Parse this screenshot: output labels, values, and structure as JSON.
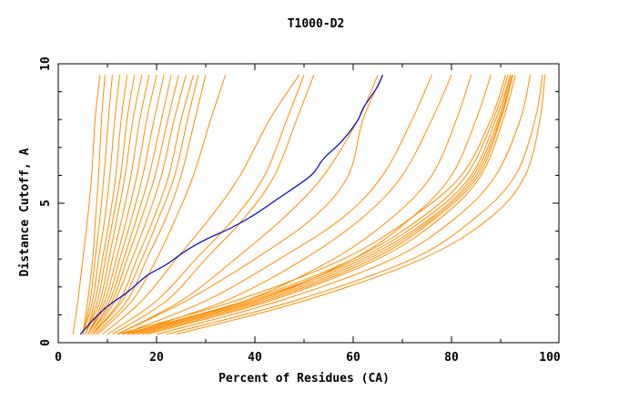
{
  "chart_data": {
    "type": "line",
    "title": "T1000-D2",
    "xlabel": "Percent of Residues (CA)",
    "ylabel": "Distance Cutoff, A",
    "xlim": [
      0,
      100
    ],
    "ylim": [
      0,
      10
    ],
    "x_ticks": [
      "0",
      "20",
      "40",
      "60",
      "80",
      "100"
    ],
    "y_ticks": [
      "0",
      "5",
      "10"
    ],
    "grid": false,
    "colors": {
      "highlight": "#0000cc",
      "others": "#ff8c00",
      "axes": "#000000"
    },
    "highlighted_series": {
      "x": [
        4.5,
        7,
        10,
        14,
        18,
        22,
        26,
        30,
        35,
        40,
        45,
        50,
        52,
        54,
        57,
        59,
        61,
        62,
        63.5,
        65,
        66
      ],
      "y": [
        0.3,
        0.8,
        1.3,
        1.8,
        2.4,
        2.8,
        3.3,
        3.7,
        4.1,
        4.6,
        5.2,
        5.8,
        6.1,
        6.6,
        7.1,
        7.5,
        8.0,
        8.4,
        8.8,
        9.2,
        9.6
      ]
    },
    "other_series": [
      {
        "x": [
          5,
          6,
          7,
          7.6,
          8.2,
          8.8,
          9.5
        ],
        "y": [
          0.3,
          1.5,
          3.0,
          4.5,
          6.0,
          8.0,
          9.6
        ]
      },
      {
        "x": [
          5,
          6.5,
          7.5,
          8.5,
          9.3,
          10.2,
          11
        ],
        "y": [
          0.3,
          1.5,
          3.0,
          4.5,
          6.0,
          8.0,
          9.6
        ]
      },
      {
        "x": [
          5,
          7,
          8.2,
          9.5,
          10.5,
          11.5,
          12.5
        ],
        "y": [
          0.3,
          1.5,
          3.0,
          4.5,
          6.0,
          8.0,
          9.6
        ]
      },
      {
        "x": [
          5.5,
          7.5,
          9,
          10.5,
          11.7,
          12.8,
          14
        ],
        "y": [
          0.3,
          1.5,
          3.0,
          4.5,
          6.0,
          8.0,
          9.6
        ]
      },
      {
        "x": [
          5.5,
          8,
          9.6,
          11.2,
          12.7,
          14,
          15.5
        ],
        "y": [
          0.3,
          1.5,
          3.0,
          4.5,
          6.0,
          8.0,
          9.6
        ]
      },
      {
        "x": [
          5.5,
          8.5,
          10.3,
          12,
          13.6,
          15.2,
          17
        ],
        "y": [
          0.3,
          1.5,
          3.0,
          4.5,
          6.0,
          8.0,
          9.6
        ]
      },
      {
        "x": [
          6,
          9,
          11,
          13,
          14.8,
          16.6,
          18.5
        ],
        "y": [
          0.3,
          1.5,
          3.0,
          4.5,
          6.0,
          8.0,
          9.6
        ]
      },
      {
        "x": [
          6,
          9.5,
          11.8,
          14,
          16,
          18,
          20
        ],
        "y": [
          0.3,
          1.5,
          3.0,
          4.5,
          6.0,
          8.0,
          9.6
        ]
      },
      {
        "x": [
          6,
          10,
          12.5,
          15,
          17.2,
          19.5,
          21.5
        ],
        "y": [
          0.3,
          1.5,
          3.0,
          4.5,
          6.0,
          8.0,
          9.6
        ]
      },
      {
        "x": [
          6.5,
          10.5,
          13.3,
          16,
          18.5,
          21,
          23
        ],
        "y": [
          0.3,
          1.5,
          3.0,
          4.5,
          6.0,
          8.0,
          9.6
        ]
      },
      {
        "x": [
          6.5,
          11,
          14,
          17,
          19.7,
          22.3,
          24.5
        ],
        "y": [
          0.3,
          1.5,
          3.0,
          4.5,
          6.0,
          8.0,
          9.6
        ]
      },
      {
        "x": [
          7,
          11.5,
          15,
          18.2,
          21,
          23.6,
          26
        ],
        "y": [
          0.3,
          1.5,
          3.0,
          4.5,
          6.0,
          8.0,
          9.6
        ]
      },
      {
        "x": [
          7,
          12.5,
          16,
          19.5,
          22.5,
          25,
          27.5
        ],
        "y": [
          0.3,
          1.5,
          3.0,
          4.5,
          6.0,
          8.0,
          9.6
        ]
      },
      {
        "x": [
          7,
          13,
          17,
          20.5,
          23.7,
          26.3,
          28.5
        ],
        "y": [
          0.3,
          1.5,
          3.0,
          4.5,
          6.0,
          8.0,
          9.6
        ]
      },
      {
        "x": [
          7.5,
          14,
          18,
          22,
          25,
          27.8,
          30
        ],
        "y": [
          0.3,
          1.5,
          3.0,
          4.5,
          6.0,
          8.0,
          9.6
        ]
      },
      {
        "x": [
          8,
          15,
          20,
          24,
          27.5,
          31,
          34
        ],
        "y": [
          0.3,
          1.5,
          3.0,
          4.5,
          6.0,
          8.0,
          9.6
        ]
      },
      {
        "x": [
          3,
          4,
          5,
          6,
          6.8,
          7.5,
          8.5
        ],
        "y": [
          0.3,
          1.5,
          3.0,
          4.5,
          6.0,
          8.0,
          9.6
        ]
      },
      {
        "x": [
          9,
          17,
          24,
          31,
          37,
          43,
          49
        ],
        "y": [
          0.3,
          1.5,
          3.0,
          4.5,
          6.0,
          8.0,
          9.6
        ]
      },
      {
        "x": [
          10,
          20,
          28,
          36,
          42,
          46.5,
          50
        ],
        "y": [
          0.3,
          1.5,
          3.0,
          4.5,
          6.0,
          8.0,
          9.6
        ]
      },
      {
        "x": [
          11,
          22,
          30,
          38,
          44,
          48.5,
          52
        ],
        "y": [
          0.3,
          1.5,
          3.0,
          4.5,
          6.0,
          8.0,
          9.6
        ]
      },
      {
        "x": [
          12,
          25,
          36,
          46,
          54,
          61,
          65
        ],
        "y": [
          0.3,
          1.5,
          3.0,
          4.5,
          6.0,
          8.0,
          9.6
        ]
      },
      {
        "x": [
          12,
          26,
          40,
          52,
          59,
          62,
          66
        ],
        "y": [
          0.3,
          1.5,
          3.0,
          4.5,
          6.0,
          8.0,
          9.6
        ]
      },
      {
        "x": [
          13,
          30,
          45,
          58,
          66,
          72,
          76
        ],
        "y": [
          0.3,
          1.5,
          3.0,
          4.5,
          6.0,
          8.0,
          9.6
        ]
      },
      {
        "x": [
          14,
          34,
          50,
          62,
          70,
          76,
          80
        ],
        "y": [
          0.3,
          1.5,
          3.0,
          4.5,
          6.0,
          8.0,
          9.6
        ]
      },
      {
        "x": [
          14,
          38,
          56,
          68,
          76,
          81,
          84
        ],
        "y": [
          0.3,
          1.5,
          3.0,
          4.5,
          6.0,
          8.0,
          9.6
        ]
      },
      {
        "x": [
          15,
          40,
          60,
          72,
          80,
          85,
          88
        ],
        "y": [
          0.3,
          1.5,
          3.0,
          4.5,
          6.0,
          8.0,
          9.6
        ]
      },
      {
        "x": [
          12,
          36,
          58,
          72,
          82,
          88,
          91
        ],
        "y": [
          0.3,
          1.5,
          3.0,
          4.5,
          6.0,
          8.0,
          9.6
        ]
      },
      {
        "x": [
          13,
          38,
          60,
          74,
          83,
          88.5,
          91.5
        ],
        "y": [
          0.3,
          1.5,
          3.0,
          4.5,
          6.0,
          8.0,
          9.6
        ]
      },
      {
        "x": [
          14,
          39,
          61,
          75,
          84,
          89,
          92
        ],
        "y": [
          0.3,
          1.5,
          3.0,
          4.5,
          6.0,
          8.0,
          9.6
        ]
      },
      {
        "x": [
          15,
          40,
          62,
          76,
          84.5,
          89.5,
          92
        ],
        "y": [
          0.3,
          1.5,
          3.0,
          4.5,
          6.0,
          8.0,
          9.6
        ]
      },
      {
        "x": [
          16,
          41,
          63,
          76.5,
          85,
          89.8,
          92.3
        ],
        "y": [
          0.3,
          1.5,
          3.0,
          4.5,
          6.0,
          8.0,
          9.6
        ]
      },
      {
        "x": [
          17,
          42,
          64,
          77,
          85.5,
          90,
          92.5
        ],
        "y": [
          0.3,
          1.5,
          3.0,
          4.5,
          6.0,
          8.0,
          9.6
        ]
      },
      {
        "x": [
          18,
          43,
          65,
          78,
          86,
          90.5,
          93
        ],
        "y": [
          0.3,
          1.5,
          3.0,
          4.5,
          6.0,
          8.0,
          9.6
        ]
      },
      {
        "x": [
          20,
          45,
          68,
          81,
          89,
          94,
          96
        ],
        "y": [
          0.3,
          1.5,
          3.0,
          4.5,
          6.0,
          8.0,
          9.6
        ]
      },
      {
        "x": [
          22,
          48,
          72,
          85,
          93,
          97,
          98.5
        ],
        "y": [
          0.3,
          1.5,
          3.0,
          4.5,
          6.0,
          8.0,
          9.6
        ]
      },
      {
        "x": [
          24,
          50,
          74,
          88,
          95,
          98,
          99
        ],
        "y": [
          0.3,
          1.5,
          3.0,
          4.5,
          6.0,
          8.0,
          9.6
        ]
      }
    ]
  }
}
